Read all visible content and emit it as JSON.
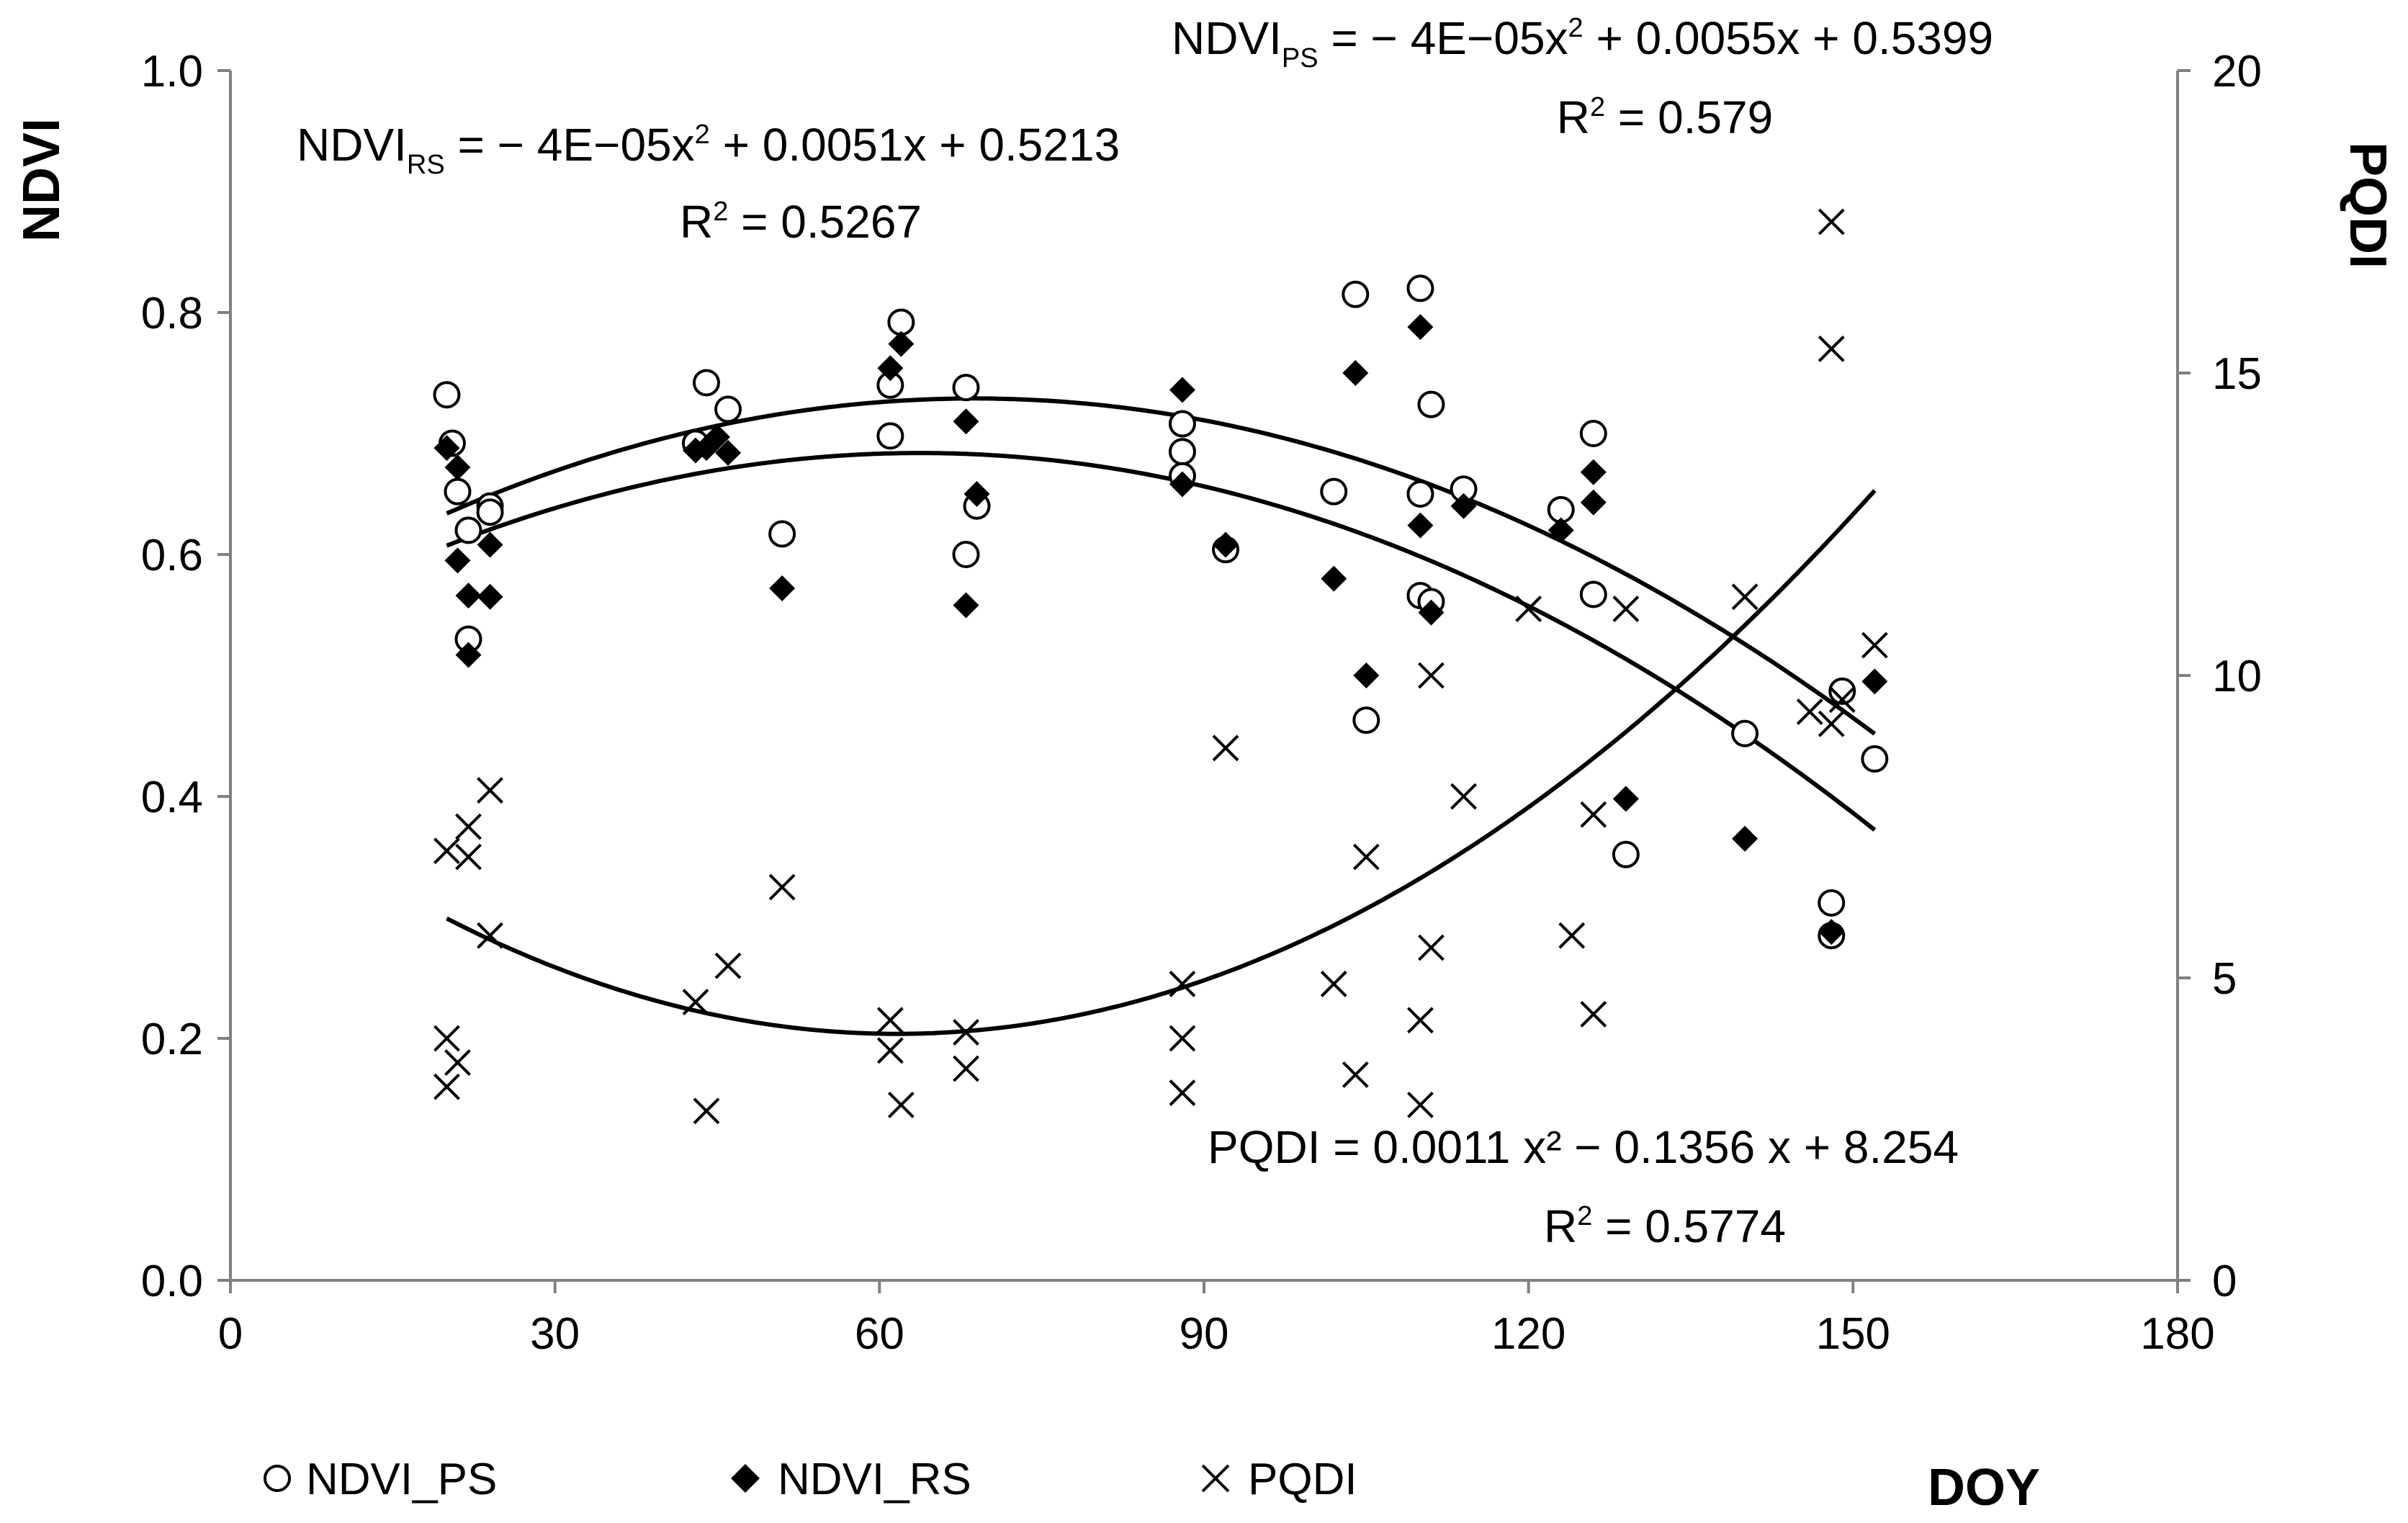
{
  "chart_data": {
    "type": "scatter",
    "title": "",
    "xlabel": "DOY",
    "ylabel": "NDVI",
    "y2label": "PQDI",
    "xlim": [
      0,
      180
    ],
    "ylim": [
      0,
      1.0
    ],
    "y2lim": [
      0,
      20
    ],
    "xticks": [
      "0",
      "30",
      "60",
      "90",
      "120",
      "150",
      "180"
    ],
    "yticks": [
      "0.0",
      "0.2",
      "0.4",
      "0.6",
      "0.8",
      "1.0"
    ],
    "y2ticks": [
      "0",
      "5",
      "10",
      "15",
      "20"
    ],
    "grid": false,
    "legend_position": "bottom-left",
    "series": [
      {
        "name": "NDVI_PS",
        "axis": "left",
        "marker": "open-circle",
        "x": [
          20,
          20.5,
          21,
          22,
          22,
          24,
          24,
          43,
          44,
          46,
          51,
          61,
          61,
          62,
          68,
          68,
          69,
          88,
          88,
          88,
          92,
          102,
          104,
          105,
          110,
          110,
          110,
          111,
          111,
          114,
          123,
          126,
          126,
          129,
          140,
          148,
          148,
          149,
          152
        ],
        "y": [
          0.732,
          0.692,
          0.652,
          0.53,
          0.62,
          0.64,
          0.635,
          0.692,
          0.742,
          0.72,
          0.617,
          0.698,
          0.74,
          0.792,
          0.6,
          0.738,
          0.64,
          0.708,
          0.685,
          0.665,
          0.604,
          0.652,
          0.815,
          0.463,
          0.82,
          0.65,
          0.566,
          0.724,
          0.561,
          0.654,
          0.637,
          0.7,
          0.567,
          0.352,
          0.452,
          0.312,
          0.285,
          0.487,
          0.431
        ]
      },
      {
        "name": "NDVI_RS",
        "axis": "left",
        "marker": "filled-diamond",
        "x": [
          20,
          21,
          21,
          22,
          22,
          24,
          24,
          43,
          44,
          45,
          46,
          51,
          61,
          62,
          68,
          68,
          69,
          88,
          88,
          92,
          102,
          104,
          105,
          110,
          110,
          111,
          114,
          123,
          126,
          126,
          129,
          140,
          148,
          152
        ],
        "y": [
          0.688,
          0.672,
          0.595,
          0.566,
          0.517,
          0.608,
          0.565,
          0.686,
          0.688,
          0.697,
          0.684,
          0.572,
          0.754,
          0.774,
          0.71,
          0.558,
          0.65,
          0.736,
          0.658,
          0.608,
          0.58,
          0.75,
          0.5,
          0.788,
          0.624,
          0.552,
          0.64,
          0.62,
          0.668,
          0.643,
          0.398,
          0.365,
          0.288,
          0.495
        ]
      },
      {
        "name": "PQDI",
        "axis": "right",
        "marker": "x",
        "x": [
          20,
          20,
          20,
          21,
          22,
          22,
          24,
          24,
          43,
          44,
          46,
          51,
          61,
          61,
          62,
          68,
          68,
          88,
          88,
          88,
          92,
          102,
          104,
          105,
          110,
          110,
          111,
          111,
          114,
          120,
          124,
          126,
          126,
          129,
          140,
          146,
          148,
          148,
          148,
          149,
          152
        ],
        "y": [
          7.1,
          4.0,
          3.2,
          3.6,
          7.5,
          7.0,
          8.1,
          5.7,
          4.6,
          2.8,
          5.2,
          6.5,
          4.3,
          3.8,
          2.9,
          4.1,
          3.5,
          4.9,
          4.0,
          3.1,
          8.8,
          4.9,
          3.4,
          7.0,
          4.3,
          2.9,
          10.0,
          5.5,
          8.0,
          11.1,
          5.7,
          7.7,
          4.4,
          11.1,
          11.3,
          9.4,
          9.2,
          17.5,
          15.4,
          9.6,
          10.5
        ]
      }
    ],
    "trendlines": [
      {
        "name": "NDVI_PS fit",
        "axis": "left",
        "a": -4e-05,
        "b": 0.0055,
        "c": 0.5399,
        "x_range": [
          20,
          152
        ]
      },
      {
        "name": "NDVI_RS fit",
        "axis": "left",
        "a": -4e-05,
        "b": 0.0051,
        "c": 0.5213,
        "x_range": [
          20,
          152
        ]
      },
      {
        "name": "PQDI fit",
        "axis": "right",
        "a": 0.0011,
        "b": -0.1356,
        "c": 8.254,
        "x_range": [
          20,
          152
        ]
      }
    ],
    "annotations": {
      "ps_equation_main": "NDVI",
      "ps_equation_sub": "PS",
      "ps_equation_rest": " = − 4E−05x",
      "ps_equation_exp": "2",
      "ps_equation_tail": " + 0.0055x + 0.5399",
      "ps_r2_label": "R",
      "ps_r2_exp": "2",
      "ps_r2_value": " = 0.579",
      "rs_equation_main": "NDVI",
      "rs_equation_sub": "RS",
      "rs_equation_rest": " = − 4E−05x",
      "rs_equation_exp": "2",
      "rs_equation_tail": " + 0.0051x + 0.5213",
      "rs_r2_label": "R",
      "rs_r2_exp": "2",
      "rs_r2_value": " = 0.5267",
      "pqdi_equation": "PQDI = 0.0011 x² − 0.1356 x + 8.254",
      "pqdi_r2_label": "R",
      "pqdi_r2_exp": "2",
      "pqdi_r2_value": " = 0.5774"
    }
  },
  "colors": {
    "ink": "#000000",
    "axis": "#808080",
    "background": "#ffffff"
  }
}
